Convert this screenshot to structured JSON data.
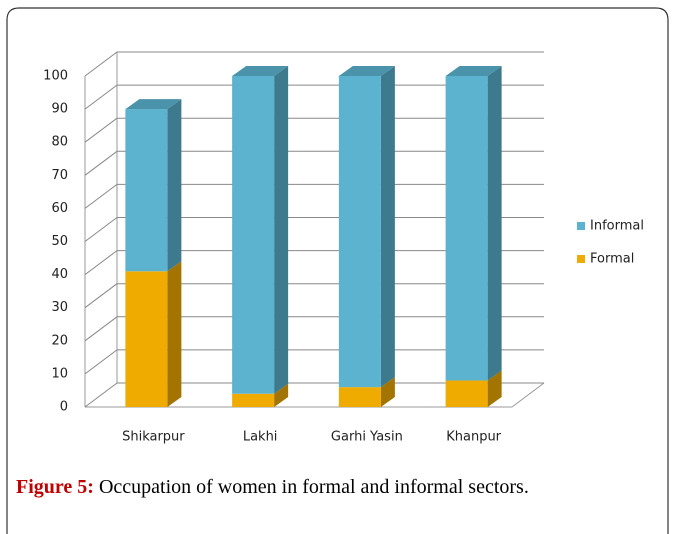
{
  "chart_data": {
    "type": "bar3d_stacked",
    "categories": [
      "Shikarpur",
      "Lakhi",
      "Garhi Yasin",
      "Khanpur"
    ],
    "series": [
      {
        "name": "Formal",
        "color": "#f0ab00",
        "values": [
          41,
          4,
          6,
          8
        ]
      },
      {
        "name": "Informal",
        "color": "#5bb3cf",
        "values": [
          49,
          96,
          94,
          92
        ]
      }
    ],
    "ylim": [
      0,
      100
    ],
    "yticks": [
      0,
      10,
      20,
      30,
      40,
      50,
      60,
      70,
      80,
      90,
      100
    ],
    "grid": true,
    "legend": "right",
    "caption": {
      "label": "Figure 5:",
      "text": "Occupation of women in formal and informal sectors."
    }
  }
}
